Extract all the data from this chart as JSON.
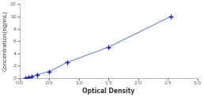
{
  "x_data": [
    0.1,
    0.152,
    0.2,
    0.3,
    0.5,
    0.8,
    1.5,
    2.55
  ],
  "y_data": [
    0.0,
    0.1,
    0.2,
    0.5,
    1.0,
    2.5,
    5.0,
    10.0
  ],
  "line_color": "#7799cc",
  "marker_color": "#1a1aaa",
  "marker_style": "+",
  "marker_size": 4,
  "marker_linewidth": 1.0,
  "line_width": 0.9,
  "xlabel": "Optical Density",
  "ylabel": "Concentration(ng/mL)",
  "xlim": [
    0,
    3
  ],
  "ylim": [
    0,
    12
  ],
  "xticks": [
    0,
    0.5,
    1,
    1.5,
    2,
    2.5,
    3
  ],
  "yticks": [
    0,
    2,
    4,
    6,
    8,
    10,
    12
  ],
  "xlabel_fontsize": 5.5,
  "ylabel_fontsize": 5.0,
  "tick_fontsize": 4.5,
  "background_color": "#ffffff",
  "spine_color": "#aaaaaa"
}
